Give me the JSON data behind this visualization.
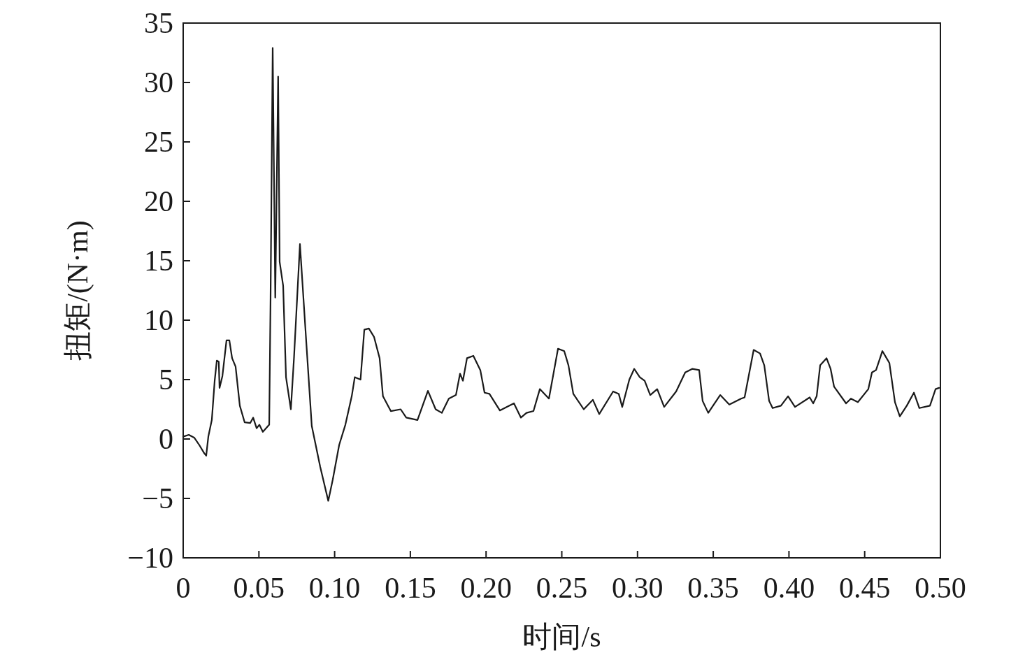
{
  "chart_data": {
    "type": "line",
    "xlabel": "时间/s",
    "ylabel": "扭矩/(N·m)",
    "xlim": [
      0,
      0.5
    ],
    "ylim": [
      -10,
      35
    ],
    "xticks": [
      0,
      {
        "value": 0.05,
        "label": "0.05"
      },
      {
        "value": 0.1,
        "label": "0.10"
      },
      {
        "value": 0.15,
        "label": "0.15"
      },
      {
        "value": 0.2,
        "label": "0.20"
      },
      {
        "value": 0.25,
        "label": "0.25"
      },
      {
        "value": 0.3,
        "label": "0.30"
      },
      {
        "value": 0.35,
        "label": "0.35"
      },
      {
        "value": 0.4,
        "label": "0.40"
      },
      {
        "value": 0.45,
        "label": "0.45"
      },
      {
        "value": 0.5,
        "label": "0.50"
      }
    ],
    "yticks": [
      {
        "value": -10,
        "label": "−10"
      },
      {
        "value": -5,
        "label": "−5"
      },
      0,
      5,
      10,
      15,
      20,
      25,
      30,
      35
    ],
    "grid": false,
    "marker": "none",
    "line_style": "solid",
    "series": [
      {
        "color": "#1a1a1a",
        "x": [
          0,
          0.0037,
          0.0074,
          0.0106,
          0.0139,
          0.0152,
          0.0166,
          0.0189,
          0.0208,
          0.0222,
          0.0235,
          0.024,
          0.0259,
          0.0286,
          0.0305,
          0.0323,
          0.0346,
          0.0374,
          0.0406,
          0.0443,
          0.0462,
          0.0485,
          0.0503,
          0.0526,
          0.0568,
          0.0577,
          0.0591,
          0.0608,
          0.0627,
          0.0637,
          0.066,
          0.0679,
          0.0711,
          0.0732,
          0.0771,
          0.0813,
          0.0849,
          0.0905,
          0.0958,
          0.0988,
          0.103,
          0.1071,
          0.1113,
          0.1133,
          0.1171,
          0.1196,
          0.1226,
          0.126,
          0.1297,
          0.1319,
          0.1371,
          0.1436,
          0.1473,
          0.1547,
          0.1616,
          0.1667,
          0.1708,
          0.1754,
          0.1801,
          0.1828,
          0.1847,
          0.1874,
          0.1916,
          0.1962,
          0.199,
          0.2022,
          0.2091,
          0.2138,
          0.2184,
          0.223,
          0.2267,
          0.2313,
          0.2355,
          0.2415,
          0.2475,
          0.2516,
          0.2544,
          0.2576,
          0.2645,
          0.2705,
          0.2747,
          0.2839,
          0.2876,
          0.2899,
          0.2946,
          0.2978,
          0.3015,
          0.3047,
          0.3084,
          0.313,
          0.3176,
          0.3255,
          0.3315,
          0.3361,
          0.3407,
          0.343,
          0.3467,
          0.3546,
          0.3606,
          0.3684,
          0.3707,
          0.3767,
          0.3809,
          0.3837,
          0.3869,
          0.3892,
          0.3947,
          0.3994,
          0.404,
          0.4137,
          0.416,
          0.4183,
          0.4206,
          0.4248,
          0.4275,
          0.4298,
          0.4377,
          0.4409,
          0.4455,
          0.4524,
          0.4548,
          0.4575,
          0.4617,
          0.4663,
          0.47,
          0.4732,
          0.4778,
          0.4825,
          0.4861,
          0.4931,
          0.4968,
          0.4991
        ],
        "values": [
          0.2,
          0.35,
          0.1,
          -0.5,
          -1.2,
          -1.4,
          0.2,
          1.6,
          4.9,
          6.6,
          6.5,
          4.3,
          5.3,
          8.3,
          8.3,
          6.8,
          6.1,
          2.8,
          1.4,
          1.35,
          1.8,
          0.9,
          1.2,
          0.6,
          1.2,
          11.9,
          32.9,
          11.9,
          30.5,
          14.9,
          12.9,
          5.2,
          2.5,
          6.9,
          16.4,
          8.1,
          1.1,
          -2.35,
          -5.2,
          -3.4,
          -0.5,
          1.2,
          3.6,
          5.2,
          5.0,
          9.2,
          9.3,
          8.6,
          6.8,
          3.6,
          2.35,
          2.5,
          1.8,
          1.6,
          4.05,
          2.5,
          2.2,
          3.4,
          3.7,
          5.5,
          4.9,
          6.8,
          7.0,
          5.8,
          3.9,
          3.8,
          2.4,
          2.7,
          3.0,
          1.8,
          2.2,
          2.35,
          4.2,
          3.4,
          7.6,
          7.4,
          6.2,
          3.8,
          2.5,
          3.3,
          2.1,
          4.0,
          3.8,
          2.7,
          5.0,
          5.9,
          5.2,
          4.9,
          3.7,
          4.2,
          2.7,
          4.0,
          5.6,
          5.9,
          5.8,
          3.2,
          2.2,
          3.7,
          2.9,
          3.4,
          3.5,
          7.5,
          7.2,
          6.2,
          3.2,
          2.6,
          2.8,
          3.6,
          2.7,
          3.5,
          3.0,
          3.6,
          6.2,
          6.8,
          5.9,
          4.4,
          3.0,
          3.4,
          3.1,
          4.2,
          5.6,
          5.8,
          7.4,
          6.4,
          3.1,
          1.9,
          2.8,
          3.9,
          2.6,
          2.8,
          4.2,
          4.3
        ]
      }
    ]
  }
}
